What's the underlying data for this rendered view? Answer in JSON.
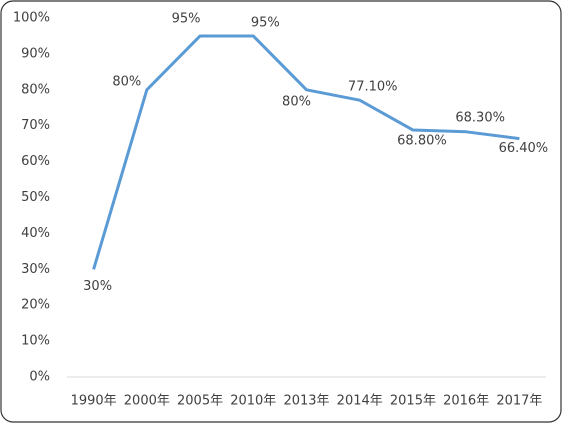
{
  "chart_data": {
    "type": "line",
    "categories": [
      "1990年",
      "2000年",
      "2005年",
      "2010年",
      "2013年",
      "2014年",
      "2015年",
      "2016年",
      "2017年"
    ],
    "series": [
      {
        "color": "#5b9bd5",
        "values": [
          30,
          80,
          95,
          95,
          80,
          77.1,
          68.8,
          68.3,
          66.4
        ],
        "value_labels": [
          "30%",
          "80%",
          "95%",
          "95%",
          "80%",
          "77.10%",
          "68.80%",
          "68.30%",
          "66.40%"
        ]
      }
    ],
    "ylim": [
      0,
      100
    ],
    "yticks": [
      {
        "value": 0,
        "label": "0%"
      },
      {
        "value": 10,
        "label": "10%"
      },
      {
        "value": 20,
        "label": "20%"
      },
      {
        "value": 30,
        "label": "30%"
      },
      {
        "value": 40,
        "label": "40%"
      },
      {
        "value": 50,
        "label": "50%"
      },
      {
        "value": 60,
        "label": "60%"
      },
      {
        "value": 70,
        "label": "70%"
      },
      {
        "value": 80,
        "label": "80%"
      },
      {
        "value": 90,
        "label": "90%"
      },
      {
        "value": 100,
        "label": "100%"
      }
    ]
  }
}
